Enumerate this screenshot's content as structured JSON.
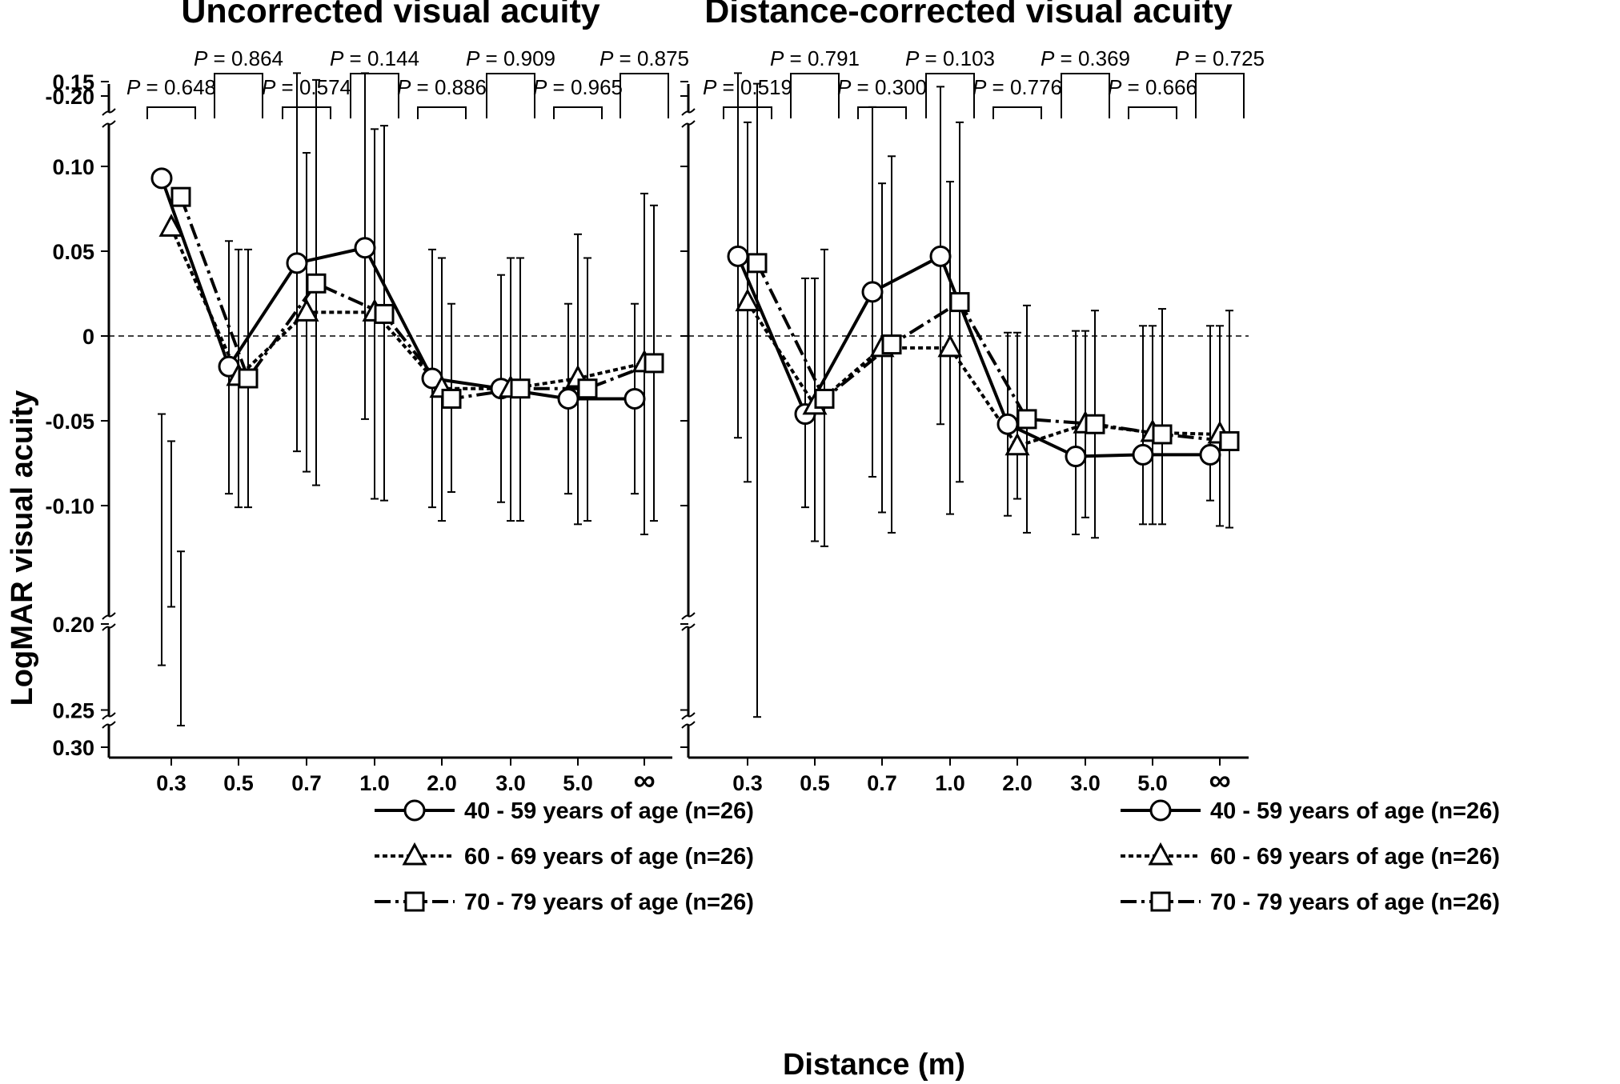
{
  "figure": {
    "ylabel": "LogMAR visual acuity",
    "xlabel": "Distance (m)"
  },
  "legend": [
    {
      "series": "40 - 59 years of age (n=26)"
    },
    {
      "series": "60 - 69 years of age (n=26)"
    },
    {
      "series": "70 - 79 years of age (n=26)"
    }
  ],
  "chart_data": [
    {
      "type": "line",
      "title": "Uncorrected visual acuity",
      "xlabel": "Distance (m)",
      "ylabel": "LogMAR visual acuity",
      "categories": [
        "0.3",
        "0.5",
        "0.7",
        "1.0",
        "2.0",
        "3.0",
        "5.0",
        "∞"
      ],
      "y_axis": {
        "inverted": true,
        "ticks": [
          "-0.20",
          "-0.10",
          "-0.05",
          "0",
          "0.05",
          "0.10",
          "0.15",
          "0.20",
          "0.25",
          "0.30"
        ],
        "breaks": [
          "between -0.20 and -0.10",
          "between 0.15 and 0.20",
          "between 0.25 and 0.30"
        ]
      },
      "reference_line": 0,
      "p_values": [
        {
          "category": "0.3",
          "label": "P = 0.648"
        },
        {
          "category": "0.5",
          "label": "P = 0.864"
        },
        {
          "category": "0.7",
          "label": "P = 0.574"
        },
        {
          "category": "1.0",
          "label": "P = 0.144"
        },
        {
          "category": "2.0",
          "label": "P = 0.886"
        },
        {
          "category": "3.0",
          "label": "P = 0.909"
        },
        {
          "category": "5.0",
          "label": "P = 0.965"
        },
        {
          "category": "∞",
          "label": "P = 0.875"
        }
      ],
      "series": [
        {
          "name": "40 - 59 years of age (n=26)",
          "marker": "circle",
          "dash": "solid",
          "values": [
            0.093,
            -0.018,
            0.043,
            0.052,
            -0.025,
            -0.031,
            -0.037,
            -0.037
          ],
          "err_low": [
            0.224,
            0.056,
            0.155,
            0.155,
            0.051,
            0.036,
            0.019,
            0.019
          ],
          "err_high": [
            -0.046,
            -0.093,
            -0.068,
            -0.049,
            -0.101,
            -0.098,
            -0.093,
            -0.093
          ]
        },
        {
          "name": "60 - 69 years of age (n=26)",
          "marker": "triangle",
          "dash": "dotted",
          "values": [
            0.064,
            -0.024,
            0.014,
            0.014,
            -0.031,
            -0.031,
            -0.025,
            -0.016
          ],
          "err_low": [
            0.19,
            0.051,
            0.108,
            0.122,
            0.046,
            0.046,
            0.06,
            0.084
          ],
          "err_high": [
            -0.062,
            -0.101,
            -0.08,
            -0.096,
            -0.109,
            -0.109,
            -0.111,
            -0.117
          ]
        },
        {
          "name": "70 - 79 years of age (n=26)",
          "marker": "square",
          "dash": "dashdot",
          "values": [
            0.082,
            -0.025,
            0.031,
            0.013,
            -0.037,
            -0.031,
            -0.031,
            -0.016
          ],
          "err_low": [
            0.285,
            0.051,
            0.151,
            0.124,
            0.019,
            0.046,
            0.046,
            0.077
          ],
          "err_high": [
            -0.127,
            -0.101,
            -0.088,
            -0.097,
            -0.092,
            -0.109,
            -0.109,
            -0.109
          ]
        }
      ]
    },
    {
      "type": "line",
      "title": "Distance-corrected visual acuity",
      "xlabel": "Distance (m)",
      "ylabel": "LogMAR visual acuity",
      "categories": [
        "0.3",
        "0.5",
        "0.7",
        "1.0",
        "2.0",
        "3.0",
        "5.0",
        "∞"
      ],
      "y_axis": {
        "inverted": true,
        "ticks": [
          "-0.20",
          "-0.10",
          "-0.05",
          "0",
          "0.05",
          "0.10",
          "0.15",
          "0.20",
          "0.25",
          "0.30"
        ],
        "breaks": [
          "between -0.20 and -0.10",
          "between 0.15 and 0.20",
          "between 0.25 and 0.30"
        ]
      },
      "reference_line": 0,
      "p_values": [
        {
          "category": "0.3",
          "label": "P = 0.519"
        },
        {
          "category": "0.5",
          "label": "P = 0.791"
        },
        {
          "category": "0.7",
          "label": "P = 0.300"
        },
        {
          "category": "1.0",
          "label": "P = 0.103"
        },
        {
          "category": "2.0",
          "label": "P = 0.776"
        },
        {
          "category": "3.0",
          "label": "P = 0.369"
        },
        {
          "category": "5.0",
          "label": "P = 0.666"
        },
        {
          "category": "∞",
          "label": "P = 0.725"
        }
      ],
      "series": [
        {
          "name": "40 - 59 years of age (n=26)",
          "marker": "circle",
          "dash": "solid",
          "values": [
            0.047,
            -0.046,
            0.026,
            0.047,
            -0.052,
            -0.071,
            -0.07,
            -0.07
          ],
          "err_low": [
            0.155,
            0.034,
            0.135,
            0.147,
            0.002,
            0.003,
            0.006,
            0.006
          ],
          "err_high": [
            -0.06,
            -0.101,
            -0.083,
            -0.052,
            -0.106,
            -0.117,
            -0.111,
            -0.097
          ]
        },
        {
          "name": "60 - 69 years of age (n=26)",
          "marker": "triangle",
          "dash": "dotted",
          "values": [
            0.02,
            -0.041,
            -0.007,
            -0.007,
            -0.065,
            -0.052,
            -0.057,
            -0.058
          ],
          "err_low": [
            0.126,
            0.034,
            0.09,
            0.091,
            0.002,
            0.003,
            0.006,
            0.006
          ],
          "err_high": [
            -0.086,
            -0.121,
            -0.104,
            -0.105,
            -0.096,
            -0.107,
            -0.111,
            -0.112
          ]
        },
        {
          "name": "70 - 79 years of age (n=26)",
          "marker": "square",
          "dash": "dashdot",
          "values": [
            0.043,
            -0.037,
            -0.005,
            0.02,
            -0.049,
            -0.052,
            -0.058,
            -0.062
          ],
          "err_low": [
            0.279,
            0.051,
            0.106,
            0.126,
            0.018,
            0.015,
            0.016,
            0.015
          ],
          "err_high": [
            -0.232,
            -0.124,
            -0.116,
            -0.086,
            -0.116,
            -0.119,
            -0.111,
            -0.113
          ]
        }
      ]
    }
  ]
}
